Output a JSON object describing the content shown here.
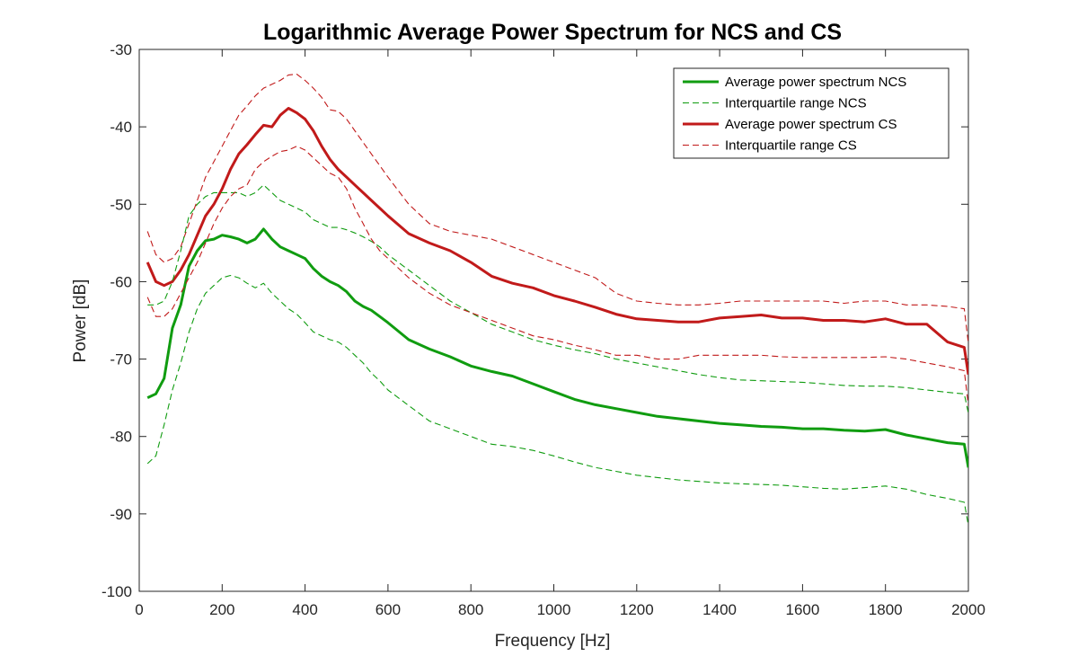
{
  "chart_data": {
    "type": "line",
    "title": "Logarithmic Average Power Spectrum for NCS and CS",
    "xlabel": "Frequency [Hz]",
    "ylabel": "Power [dB]",
    "xlim": [
      0,
      2000
    ],
    "ylim": [
      -100,
      -30
    ],
    "xticks": [
      0,
      200,
      400,
      600,
      800,
      1000,
      1200,
      1400,
      1600,
      1800,
      2000
    ],
    "yticks": [
      -100,
      -90,
      -80,
      -70,
      -60,
      -50,
      -40,
      -30
    ],
    "xtick_labels": [
      "0",
      "200",
      "400",
      "600",
      "800",
      "1000",
      "1200",
      "1400",
      "1600",
      "1800",
      "2000"
    ],
    "ytick_labels": [
      "-100",
      "-90",
      "-80",
      "-70",
      "-60",
      "-50",
      "-40",
      "-30"
    ],
    "grid": false,
    "legend_position": "top-right",
    "series": [
      {
        "name": "Average power spectrum NCS",
        "color": "#109c10",
        "style": "solid",
        "x": [
          20,
          40,
          60,
          80,
          100,
          120,
          140,
          160,
          180,
          200,
          220,
          240,
          260,
          280,
          300,
          320,
          340,
          360,
          380,
          400,
          420,
          440,
          460,
          480,
          500,
          520,
          540,
          560,
          580,
          600,
          650,
          700,
          750,
          800,
          850,
          900,
          950,
          1000,
          1050,
          1100,
          1150,
          1200,
          1250,
          1300,
          1350,
          1400,
          1450,
          1500,
          1550,
          1600,
          1650,
          1700,
          1750,
          1800,
          1850,
          1900,
          1950,
          1990,
          2000
        ],
        "y": [
          -75,
          -74.5,
          -72.5,
          -66,
          -63,
          -58,
          -56,
          -54.7,
          -54.5,
          -54,
          -54.2,
          -54.5,
          -55,
          -54.5,
          -53.2,
          -54.5,
          -55.5,
          -56,
          -56.5,
          -57,
          -58.3,
          -59.3,
          -60,
          -60.5,
          -61.3,
          -62.5,
          -63.2,
          -63.7,
          -64.5,
          -65.3,
          -67.5,
          -68.7,
          -69.7,
          -70.9,
          -71.6,
          -72.2,
          -73.2,
          -74.2,
          -75.2,
          -75.9,
          -76.4,
          -76.9,
          -77.4,
          -77.7,
          -78,
          -78.3,
          -78.5,
          -78.7,
          -78.8,
          -79,
          -79,
          -79.2,
          -79.3,
          -79.1,
          -79.8,
          -80.3,
          -80.8,
          -81,
          -84
        ]
      },
      {
        "name": "Interquartile range NCS",
        "color": "#109c10",
        "style": "dashed",
        "x": [
          20,
          40,
          60,
          80,
          100,
          120,
          140,
          160,
          180,
          200,
          220,
          240,
          260,
          280,
          300,
          320,
          340,
          360,
          380,
          400,
          420,
          440,
          460,
          480,
          500,
          520,
          540,
          560,
          580,
          600,
          650,
          700,
          750,
          800,
          850,
          900,
          950,
          1000,
          1050,
          1100,
          1150,
          1200,
          1250,
          1300,
          1350,
          1400,
          1450,
          1500,
          1550,
          1600,
          1650,
          1700,
          1750,
          1800,
          1850,
          1900,
          1950,
          1990,
          2000
        ],
        "y": [
          -83.5,
          -82.5,
          -78.5,
          -74,
          -70.5,
          -66.5,
          -63.5,
          -61.5,
          -60.5,
          -59.5,
          -59.2,
          -59.5,
          -60.2,
          -60.8,
          -60.2,
          -61.5,
          -62.5,
          -63.5,
          -64.2,
          -65.3,
          -66.5,
          -67,
          -67.5,
          -67.8,
          -68.5,
          -69.5,
          -70.5,
          -71.8,
          -72.8,
          -74,
          -76,
          -78,
          -79,
          -80,
          -81,
          -81.3,
          -81.8,
          -82.5,
          -83.3,
          -84,
          -84.5,
          -85,
          -85.3,
          -85.6,
          -85.8,
          -86,
          -86.1,
          -86.2,
          -86.3,
          -86.5,
          -86.7,
          -86.8,
          -86.6,
          -86.4,
          -86.8,
          -87.5,
          -88,
          -88.5,
          -91.5
        ]
      },
      {
        "name": "Average power spectrum CS",
        "color": "#c11a1a",
        "style": "solid",
        "x": [
          20,
          40,
          60,
          80,
          100,
          120,
          140,
          160,
          180,
          200,
          220,
          240,
          260,
          280,
          300,
          320,
          340,
          360,
          380,
          400,
          420,
          440,
          460,
          480,
          500,
          520,
          540,
          560,
          580,
          600,
          650,
          700,
          750,
          800,
          850,
          900,
          950,
          1000,
          1050,
          1100,
          1150,
          1200,
          1250,
          1300,
          1350,
          1400,
          1450,
          1500,
          1550,
          1600,
          1650,
          1700,
          1750,
          1800,
          1850,
          1900,
          1950,
          1990,
          2000
        ],
        "y": [
          -57.5,
          -60,
          -60.5,
          -60,
          -58.5,
          -56.5,
          -54,
          -51.5,
          -50,
          -48,
          -45.5,
          -43.5,
          -42.3,
          -41,
          -39.8,
          -40,
          -38.5,
          -37.6,
          -38.2,
          -39,
          -40.5,
          -42.5,
          -44.2,
          -45.5,
          -46.5,
          -47.5,
          -48.5,
          -49.5,
          -50.5,
          -51.5,
          -53.8,
          -55,
          -56,
          -57.5,
          -59.3,
          -60.2,
          -60.8,
          -61.8,
          -62.5,
          -63.3,
          -64.2,
          -64.8,
          -65,
          -65.2,
          -65.2,
          -64.7,
          -64.5,
          -64.3,
          -64.7,
          -64.7,
          -65,
          -65,
          -65.2,
          -64.8,
          -65.5,
          -65.5,
          -67.8,
          -68.5,
          -72
        ]
      },
      {
        "name": "Interquartile range CS",
        "color": "#c11a1a",
        "style": "dashed",
        "x": [
          20,
          40,
          60,
          80,
          100,
          120,
          140,
          160,
          180,
          200,
          220,
          240,
          260,
          280,
          300,
          320,
          340,
          360,
          380,
          400,
          420,
          440,
          460,
          480,
          500,
          520,
          540,
          560,
          580,
          600,
          650,
          700,
          750,
          800,
          850,
          900,
          950,
          1000,
          1050,
          1100,
          1150,
          1200,
          1250,
          1300,
          1350,
          1400,
          1450,
          1500,
          1550,
          1600,
          1650,
          1700,
          1750,
          1800,
          1850,
          1900,
          1950,
          1990,
          2000
        ],
        "y": [
          -53.5,
          -56.5,
          -57.5,
          -57,
          -55.5,
          -52.5,
          -49.5,
          -46.5,
          -44.5,
          -42.5,
          -40.5,
          -38.5,
          -37.3,
          -36,
          -35,
          -34.5,
          -34,
          -33.3,
          -33.2,
          -34,
          -35,
          -36.2,
          -37.8,
          -38,
          -39,
          -40.5,
          -42,
          -43.5,
          -45,
          -46.5,
          -50,
          -52.5,
          -53.5,
          -54,
          -54.5,
          -55.5,
          -56.5,
          -57.5,
          -58.5,
          -59.5,
          -61.5,
          -62.5,
          -62.8,
          -63,
          -63,
          -62.8,
          -62.5,
          -62.5,
          -62.5,
          -62.5,
          -62.5,
          -62.8,
          -62.5,
          -62.5,
          -63,
          -63,
          -63.2,
          -63.5,
          -68
        ]
      },
      {
        "name": "Interquartile range NCS",
        "color": "#109c10",
        "style": "dashed",
        "legend": false,
        "x": [
          20,
          40,
          60,
          80,
          100,
          120,
          140,
          160,
          180,
          200,
          220,
          240,
          260,
          280,
          300,
          320,
          340,
          360,
          380,
          400,
          420,
          440,
          460,
          480,
          500,
          520,
          540,
          560,
          580,
          600,
          650,
          700,
          750,
          800,
          850,
          900,
          950,
          1000,
          1050,
          1100,
          1150,
          1200,
          1250,
          1300,
          1350,
          1400,
          1450,
          1500,
          1550,
          1600,
          1650,
          1700,
          1750,
          1800,
          1850,
          1900,
          1950,
          1990,
          2000
        ],
        "y": [
          -63,
          -63,
          -62.5,
          -60,
          -56,
          -51.5,
          -50,
          -49,
          -48.5,
          -48.5,
          -48.5,
          -48.5,
          -49,
          -48.5,
          -47.5,
          -48.5,
          -49.5,
          -50,
          -50.5,
          -51,
          -52,
          -52.5,
          -53,
          -53,
          -53.3,
          -53.7,
          -54.2,
          -54.8,
          -55.5,
          -56.5,
          -58.5,
          -60.5,
          -62.5,
          -64,
          -65.5,
          -66.5,
          -67.5,
          -68.2,
          -68.8,
          -69.3,
          -70,
          -70.5,
          -71,
          -71.5,
          -72,
          -72.4,
          -72.7,
          -72.8,
          -72.9,
          -73,
          -73.2,
          -73.4,
          -73.5,
          -73.5,
          -73.7,
          -74,
          -74.3,
          -74.5,
          -77
        ]
      },
      {
        "name": "Interquartile range CS",
        "color": "#c11a1a",
        "style": "dashed",
        "legend": false,
        "x": [
          20,
          40,
          60,
          80,
          100,
          120,
          140,
          160,
          180,
          200,
          220,
          240,
          260,
          280,
          300,
          320,
          340,
          360,
          380,
          400,
          420,
          440,
          460,
          480,
          500,
          520,
          540,
          560,
          580,
          600,
          650,
          700,
          750,
          800,
          850,
          900,
          950,
          1000,
          1050,
          1100,
          1150,
          1200,
          1250,
          1300,
          1350,
          1400,
          1450,
          1500,
          1550,
          1600,
          1650,
          1700,
          1750,
          1800,
          1850,
          1900,
          1950,
          1990,
          2000
        ],
        "y": [
          -62,
          -64.5,
          -64.5,
          -63.5,
          -61.5,
          -59.5,
          -57.5,
          -55,
          -52.5,
          -50.5,
          -49,
          -48,
          -47.5,
          -45.5,
          -44.5,
          -43.8,
          -43.2,
          -43,
          -42.5,
          -43,
          -44,
          -45,
          -46,
          -46.5,
          -48,
          -50.5,
          -52.5,
          -54.5,
          -56,
          -57,
          -59.5,
          -61.5,
          -63,
          -64,
          -65,
          -66,
          -67,
          -67.5,
          -68.2,
          -68.8,
          -69.5,
          -69.5,
          -70,
          -70,
          -69.5,
          -69.5,
          -69.5,
          -69.5,
          -69.7,
          -69.8,
          -69.8,
          -69.8,
          -69.8,
          -69.7,
          -70,
          -70.5,
          -71,
          -71.5,
          -76
        ]
      }
    ]
  }
}
